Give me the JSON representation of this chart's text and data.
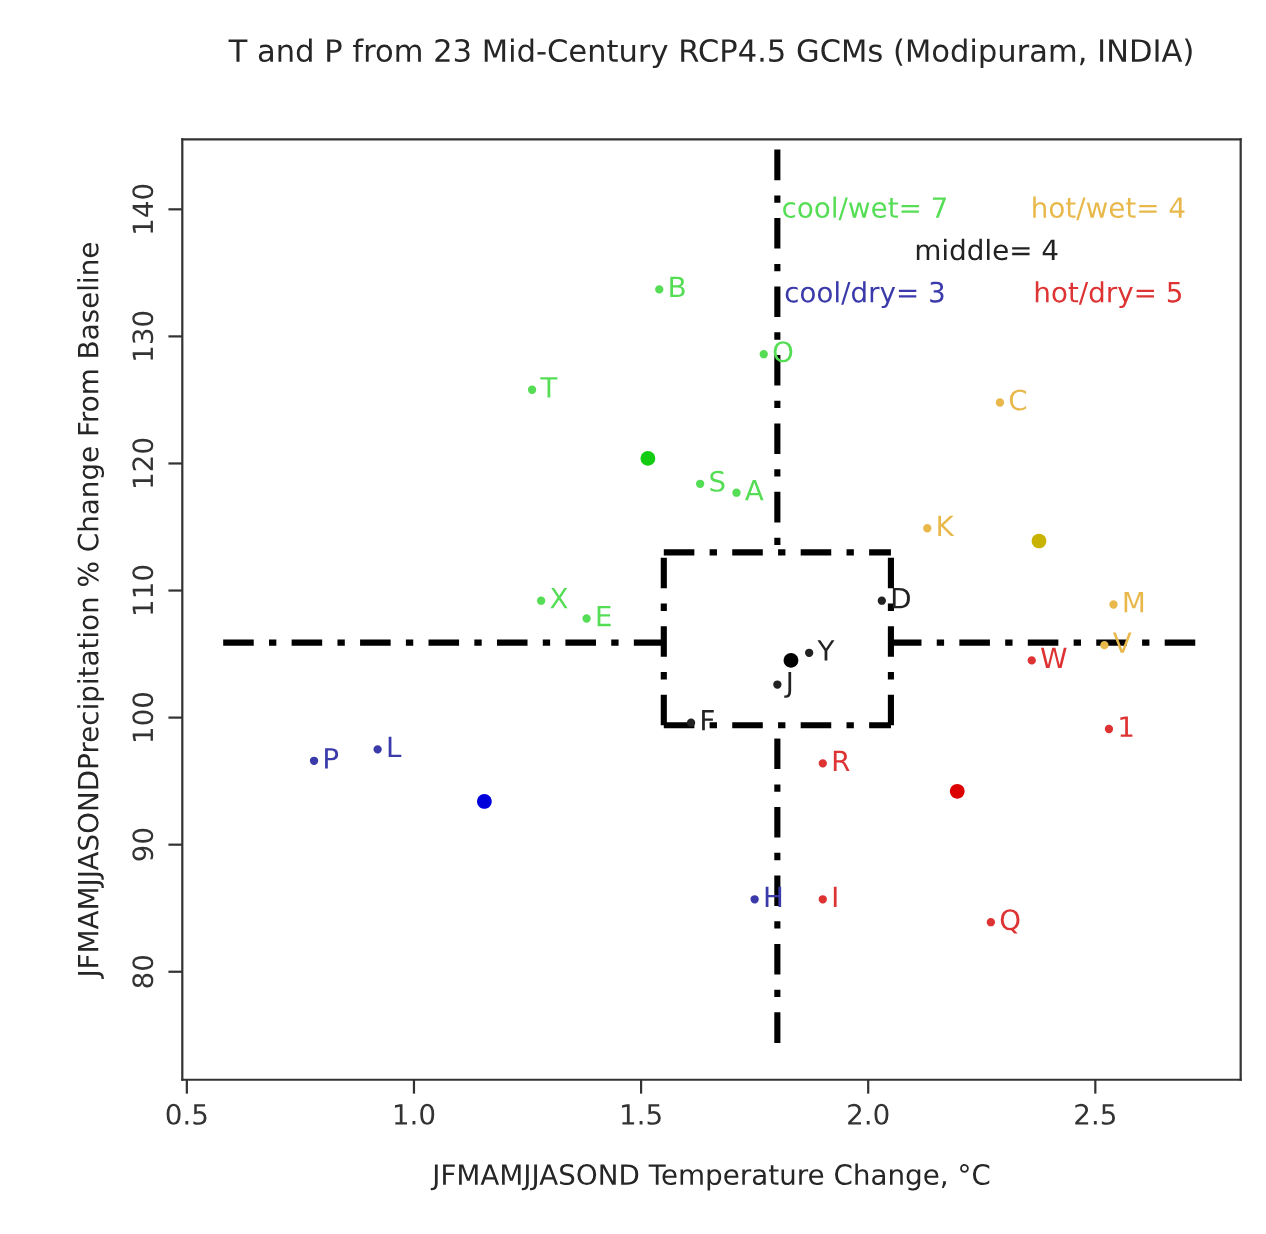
{
  "chart_data": {
    "type": "scatter",
    "title": "T and P from 23 Mid-Century RCP4.5 GCMs (Modipuram, INDIA)",
    "xlabel": "JFMAMJJASOND Temperature Change, °C",
    "ylabel": "JFMAMJJASONDPrecipitation % Change From Baseline",
    "xlim": [
      0.49,
      2.82
    ],
    "ylim": [
      71.5,
      145.5
    ],
    "xticks": [
      {
        "value": 0.5,
        "label": "0.5"
      },
      {
        "value": 1,
        "label": "1.0"
      },
      {
        "value": 1.5,
        "label": "1.5"
      },
      {
        "value": 2,
        "label": "2.0"
      },
      {
        "value": 2.5,
        "label": "2.5"
      }
    ],
    "yticks": [
      80,
      90,
      100,
      110,
      120,
      130,
      140
    ],
    "grid": false,
    "series": [
      {
        "name": "cool/wet= 7",
        "type": "scatter",
        "color": "#55dd55",
        "x": [
          1.54,
          1.26,
          1.63,
          1.71,
          1.28,
          1.38,
          1.77
        ],
        "values": [
          133.7,
          125.8,
          118.4,
          117.7,
          109.2,
          107.8,
          128.6
        ]
      },
      {
        "name": "hot/wet= 4",
        "type": "scatter",
        "color": "#e8b84b",
        "x": [
          2.29,
          2.13,
          2.54,
          2.52
        ],
        "values": [
          124.8,
          114.9,
          108.9,
          105.7
        ]
      },
      {
        "name": "middle= 4",
        "type": "scatter",
        "color": "#222222",
        "x": [
          2.03,
          1.87,
          1.8,
          1.61
        ],
        "values": [
          109.2,
          105.1,
          102.6,
          99.6
        ]
      },
      {
        "name": "cool/dry= 3",
        "type": "scatter",
        "color": "#3a3aaa",
        "x": [
          0.78,
          0.92,
          1.75
        ],
        "values": [
          96.6,
          97.5,
          85.7
        ]
      },
      {
        "name": "hot/dry= 5",
        "type": "scatter",
        "color": "#dd3333",
        "x": [
          2.36,
          1.9,
          2.53,
          1.9,
          2.27
        ],
        "values": [
          104.5,
          96.4,
          99.1,
          85.7,
          83.9
        ]
      },
      {
        "marker": "circle",
        "colors": [
          "#11cc11",
          "#c8b400",
          "#000000",
          "#0000dd",
          "#dd0000"
        ],
        "x": [
          1.515,
          2.376,
          1.83,
          1.155,
          2.196
        ],
        "values": [
          120.4,
          113.9,
          104.5,
          93.4,
          94.2
        ]
      },
      {
        "type": "line",
        "line_style": "dashdot",
        "color": "#000000",
        "x": [
          1.8,
          1.8
        ],
        "values": [
          144.7,
          113.0
        ]
      },
      {
        "type": "line",
        "line_style": "dashdot",
        "color": "#000000",
        "x": [
          1.8,
          1.8
        ],
        "values": [
          74.4,
          99.4
        ]
      },
      {
        "type": "line",
        "line_style": "dashdot",
        "color": "#000000",
        "x": [
          0.58,
          1.55
        ],
        "values": [
          105.9,
          105.9
        ]
      },
      {
        "type": "line",
        "line_style": "dashdot",
        "color": "#000000",
        "x": [
          2.05,
          2.72
        ],
        "values": [
          105.9,
          105.9
        ]
      },
      {
        "type": "line",
        "line_style": "dashdot",
        "color": "#000000",
        "x": [
          1.55,
          2.05
        ],
        "values": [
          113.0,
          113.0
        ]
      },
      {
        "type": "line",
        "line_style": "dashdot",
        "color": "#000000",
        "x": [
          2.05,
          2.05
        ],
        "values": [
          99.4,
          113.0
        ]
      },
      {
        "type": "line",
        "line_style": "dashdot",
        "color": "#000000",
        "x": [
          1.55,
          2.05
        ],
        "values": [
          99.4,
          99.4
        ]
      },
      {
        "type": "line",
        "line_style": "dashdot",
        "color": "#000000",
        "x": [
          1.55,
          1.55
        ],
        "values": [
          99.4,
          113.0
        ]
      }
    ],
    "annotations": [
      {
        "text": "B",
        "x": 1.54,
        "y": 133.7
      },
      {
        "text": "T",
        "x": 1.26,
        "y": 125.8
      },
      {
        "text": "S",
        "x": 1.63,
        "y": 118.4
      },
      {
        "text": "A",
        "x": 1.71,
        "y": 117.7
      },
      {
        "text": "X",
        "x": 1.28,
        "y": 109.2
      },
      {
        "text": "E",
        "x": 1.38,
        "y": 107.8
      },
      {
        "text": "O",
        "x": 1.77,
        "y": 128.6
      },
      {
        "text": "C",
        "x": 2.29,
        "y": 124.8
      },
      {
        "text": "K",
        "x": 2.13,
        "y": 114.9
      },
      {
        "text": "M",
        "x": 2.54,
        "y": 108.9
      },
      {
        "text": "V",
        "x": 2.52,
        "y": 105.7
      },
      {
        "text": "D",
        "x": 2.03,
        "y": 109.2
      },
      {
        "text": "Y",
        "x": 1.87,
        "y": 105.1
      },
      {
        "text": "J",
        "x": 1.8,
        "y": 102.6
      },
      {
        "text": "F",
        "x": 1.61,
        "y": 99.6
      },
      {
        "text": "P",
        "x": 0.78,
        "y": 96.6
      },
      {
        "text": "L",
        "x": 0.92,
        "y": 97.5
      },
      {
        "text": "H",
        "x": 1.75,
        "y": 85.7
      },
      {
        "text": "W",
        "x": 2.36,
        "y": 104.5
      },
      {
        "text": "R",
        "x": 1.9,
        "y": 96.4
      },
      {
        "text": "1",
        "x": 2.53,
        "y": 99.1
      },
      {
        "text": "I",
        "x": 1.9,
        "y": 85.7
      },
      {
        "text": "Q",
        "x": 2.27,
        "y": 83.9
      }
    ]
  }
}
